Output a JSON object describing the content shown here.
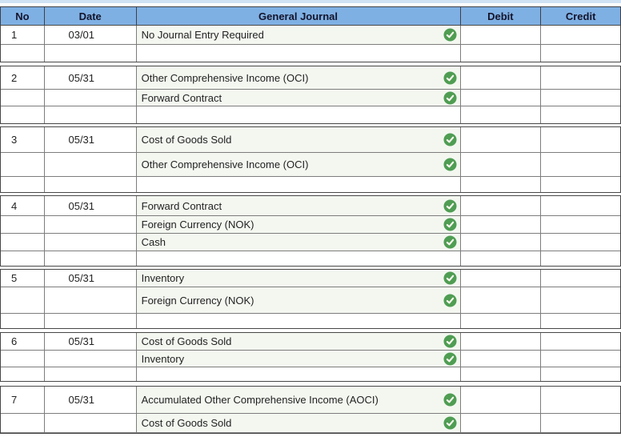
{
  "journal": {
    "columns": [
      "No",
      "Date",
      "General Journal",
      "Debit",
      "Credit"
    ],
    "entries": [
      {
        "no": "1",
        "date": "03/01",
        "lines": [
          {
            "account": "No Journal Entry Required",
            "debit": "",
            "credit": "",
            "checked": true
          }
        ]
      },
      {
        "no": "2",
        "date": "05/31",
        "lines": [
          {
            "account": "Other Comprehensive Income (OCI)",
            "debit": "",
            "credit": "",
            "checked": true
          },
          {
            "account": "Forward Contract",
            "debit": "",
            "credit": "",
            "checked": true
          }
        ]
      },
      {
        "no": "3",
        "date": "05/31",
        "lines": [
          {
            "account": "Cost of Goods Sold",
            "debit": "",
            "credit": "",
            "checked": true
          },
          {
            "account": "Other Comprehensive Income (OCI)",
            "debit": "",
            "credit": "",
            "checked": true
          }
        ]
      },
      {
        "no": "4",
        "date": "05/31",
        "lines": [
          {
            "account": "Forward Contract",
            "debit": "",
            "credit": "",
            "checked": true
          },
          {
            "account": "Foreign Currency (NOK)",
            "debit": "",
            "credit": "",
            "checked": true
          },
          {
            "account": "Cash",
            "debit": "",
            "credit": "",
            "checked": true
          }
        ]
      },
      {
        "no": "5",
        "date": "05/31",
        "lines": [
          {
            "account": "Inventory",
            "debit": "",
            "credit": "",
            "checked": true
          },
          {
            "account": "Foreign Currency (NOK)",
            "debit": "",
            "credit": "",
            "checked": true
          }
        ]
      },
      {
        "no": "6",
        "date": "05/31",
        "lines": [
          {
            "account": "Cost of Goods Sold",
            "debit": "",
            "credit": "",
            "checked": true
          },
          {
            "account": "Inventory",
            "debit": "",
            "credit": "",
            "checked": true
          }
        ]
      },
      {
        "no": "7",
        "date": "05/31",
        "lines": [
          {
            "account": "Accumulated Other Comprehensive Income (AOCI)",
            "debit": "",
            "credit": "",
            "checked": true
          },
          {
            "account": "Cost of Goods Sold",
            "debit": "",
            "credit": "",
            "checked": true
          }
        ]
      }
    ]
  },
  "icons": {
    "check": "check-circle-icon"
  },
  "colors": {
    "header_bg": "#7fb0e3",
    "header_text": "#14142b",
    "top_strip": "#cfe2f4",
    "answer_cell_bg": "#f3f7f0",
    "check_green": "#4f9d53",
    "border_dark": "#474747",
    "border_inner": "#7d7d7d"
  }
}
